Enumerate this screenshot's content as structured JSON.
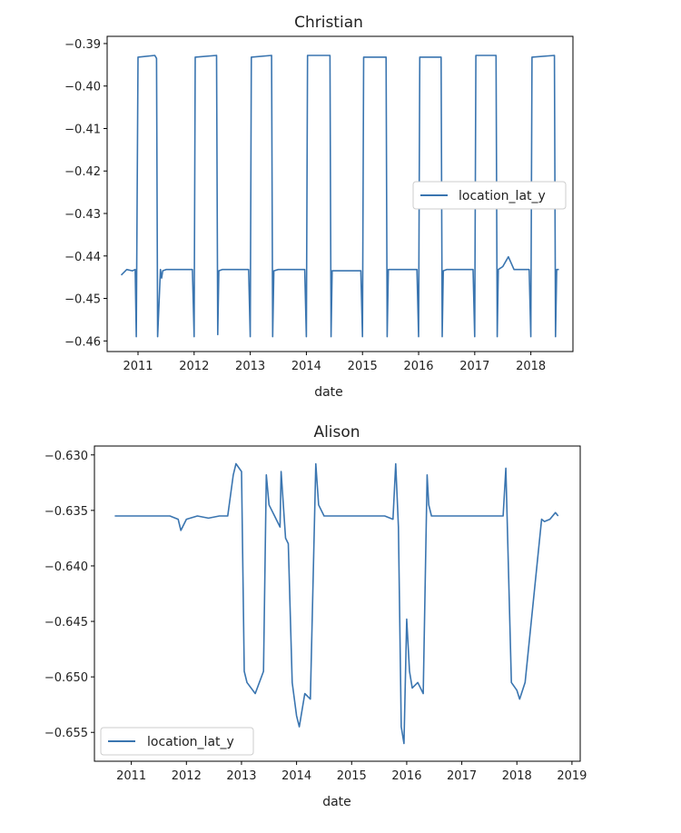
{
  "chart_data": [
    {
      "type": "line",
      "title": "Christian",
      "xlabel": "date",
      "ylabel": "",
      "xlim": [
        2010.45,
        2018.75
      ],
      "ylim": [
        -0.4625,
        -0.3883
      ],
      "x_ticks": [
        2011,
        2012,
        2013,
        2014,
        2015,
        2016,
        2017,
        2018
      ],
      "x_tick_labels": [
        "2011",
        "2012",
        "2013",
        "2014",
        "2015",
        "2016",
        "2017",
        "2018"
      ],
      "y_ticks": [
        -0.46,
        -0.45,
        -0.44,
        -0.43,
        -0.42,
        -0.41,
        -0.4,
        -0.39
      ],
      "y_tick_labels": [
        "−0.46",
        "−0.45",
        "−0.44",
        "−0.43",
        "−0.42",
        "−0.41",
        "−0.40",
        "−0.39"
      ],
      "grid": false,
      "legend": {
        "position": "center-right"
      },
      "series": [
        {
          "name": "location_lat_y",
          "color": "#3a75b0",
          "x": [
            2010.7,
            2010.8,
            2010.9,
            2010.95,
            2010.97,
            2011.0,
            2011.3,
            2011.33,
            2011.35,
            2011.4,
            2011.42,
            2011.44,
            2011.5,
            2011.8,
            2011.97,
            2012.0,
            2012.02,
            2012.4,
            2012.42,
            2012.44,
            2012.5,
            2012.9,
            2012.97,
            2013.0,
            2013.02,
            2013.38,
            2013.4,
            2013.42,
            2013.5,
            2013.9,
            2013.97,
            2014.0,
            2014.02,
            2014.42,
            2014.44,
            2014.46,
            2014.5,
            2014.9,
            2014.97,
            2015.0,
            2015.02,
            2015.42,
            2015.44,
            2015.46,
            2015.5,
            2015.9,
            2015.97,
            2016.0,
            2016.02,
            2016.4,
            2016.42,
            2016.44,
            2016.5,
            2016.9,
            2016.97,
            2017.0,
            2017.02,
            2017.38,
            2017.4,
            2017.42,
            2017.5,
            2017.6,
            2017.7,
            2017.85,
            2017.97,
            2018.0,
            2018.02,
            2018.42,
            2018.44,
            2018.46,
            2018.5
          ],
          "y": [
            -0.4445,
            -0.4432,
            -0.4435,
            -0.4432,
            -0.459,
            -0.3932,
            -0.3928,
            -0.3935,
            -0.459,
            -0.4432,
            -0.4452,
            -0.4435,
            -0.4432,
            -0.4432,
            -0.4432,
            -0.459,
            -0.3932,
            -0.3928,
            -0.4585,
            -0.4435,
            -0.4432,
            -0.4432,
            -0.4432,
            -0.459,
            -0.3932,
            -0.3928,
            -0.459,
            -0.4435,
            -0.4432,
            -0.4432,
            -0.4432,
            -0.459,
            -0.3928,
            -0.3928,
            -0.459,
            -0.4435,
            -0.4435,
            -0.4435,
            -0.4435,
            -0.459,
            -0.3932,
            -0.3932,
            -0.459,
            -0.4432,
            -0.4432,
            -0.4432,
            -0.4432,
            -0.459,
            -0.3932,
            -0.3932,
            -0.459,
            -0.4435,
            -0.4432,
            -0.4432,
            -0.4432,
            -0.459,
            -0.3928,
            -0.3928,
            -0.459,
            -0.4432,
            -0.4425,
            -0.4402,
            -0.4432,
            -0.4432,
            -0.4432,
            -0.459,
            -0.3932,
            -0.3928,
            -0.459,
            -0.4432,
            -0.4432
          ]
        }
      ]
    },
    {
      "type": "line",
      "title": "Alison",
      "xlabel": "date",
      "ylabel": "",
      "xlim": [
        2010.33,
        2019.15
      ],
      "ylim": [
        -0.6576,
        -0.6292
      ],
      "x_ticks": [
        2011,
        2012,
        2013,
        2014,
        2015,
        2016,
        2017,
        2018,
        2019
      ],
      "x_tick_labels": [
        "2011",
        "2012",
        "2013",
        "2014",
        "2015",
        "2016",
        "2017",
        "2018",
        "2019"
      ],
      "y_ticks": [
        -0.655,
        -0.65,
        -0.645,
        -0.64,
        -0.635,
        -0.63
      ],
      "y_tick_labels": [
        "−0.655",
        "−0.650",
        "−0.645",
        "−0.640",
        "−0.635",
        "−0.630"
      ],
      "grid": false,
      "legend": {
        "position": "lower-left"
      },
      "series": [
        {
          "name": "location_lat_y",
          "color": "#3a75b0",
          "x": [
            2010.7,
            2010.9,
            2011.1,
            2011.3,
            2011.5,
            2011.7,
            2011.85,
            2011.9,
            2012.0,
            2012.2,
            2012.4,
            2012.6,
            2012.75,
            2012.85,
            2012.9,
            2013.0,
            2013.05,
            2013.1,
            2013.25,
            2013.4,
            2013.45,
            2013.5,
            2013.6,
            2013.7,
            2013.72,
            2013.8,
            2013.85,
            2013.92,
            2014.0,
            2014.05,
            2014.15,
            2014.25,
            2014.35,
            2014.4,
            2014.5,
            2014.7,
            2014.9,
            2015.1,
            2015.3,
            2015.5,
            2015.6,
            2015.75,
            2015.8,
            2015.85,
            2015.9,
            2015.95,
            2016.0,
            2016.05,
            2016.1,
            2016.2,
            2016.3,
            2016.37,
            2016.4,
            2016.45,
            2016.6,
            2016.8,
            2017.0,
            2017.2,
            2017.4,
            2017.6,
            2017.75,
            2017.8,
            2017.9,
            2018.0,
            2018.05,
            2018.15,
            2018.45,
            2018.5,
            2018.6,
            2018.7,
            2018.75
          ],
          "y": [
            -0.6355,
            -0.6355,
            -0.6355,
            -0.6355,
            -0.6355,
            -0.6355,
            -0.6358,
            -0.6368,
            -0.6358,
            -0.6355,
            -0.6357,
            -0.6355,
            -0.6355,
            -0.6318,
            -0.6308,
            -0.6315,
            -0.6495,
            -0.6505,
            -0.6515,
            -0.6495,
            -0.6318,
            -0.6345,
            -0.6355,
            -0.6365,
            -0.6315,
            -0.6375,
            -0.638,
            -0.6505,
            -0.6535,
            -0.6545,
            -0.6515,
            -0.652,
            -0.6308,
            -0.6345,
            -0.6355,
            -0.6355,
            -0.6355,
            -0.6355,
            -0.6355,
            -0.6355,
            -0.6355,
            -0.6358,
            -0.6308,
            -0.6365,
            -0.6545,
            -0.656,
            -0.6448,
            -0.6495,
            -0.651,
            -0.6505,
            -0.6515,
            -0.6318,
            -0.6345,
            -0.6355,
            -0.6355,
            -0.6355,
            -0.6355,
            -0.6355,
            -0.6355,
            -0.6355,
            -0.6355,
            -0.6312,
            -0.6505,
            -0.6512,
            -0.652,
            -0.6505,
            -0.6358,
            -0.636,
            -0.6358,
            -0.6352,
            -0.6355
          ]
        }
      ]
    }
  ]
}
